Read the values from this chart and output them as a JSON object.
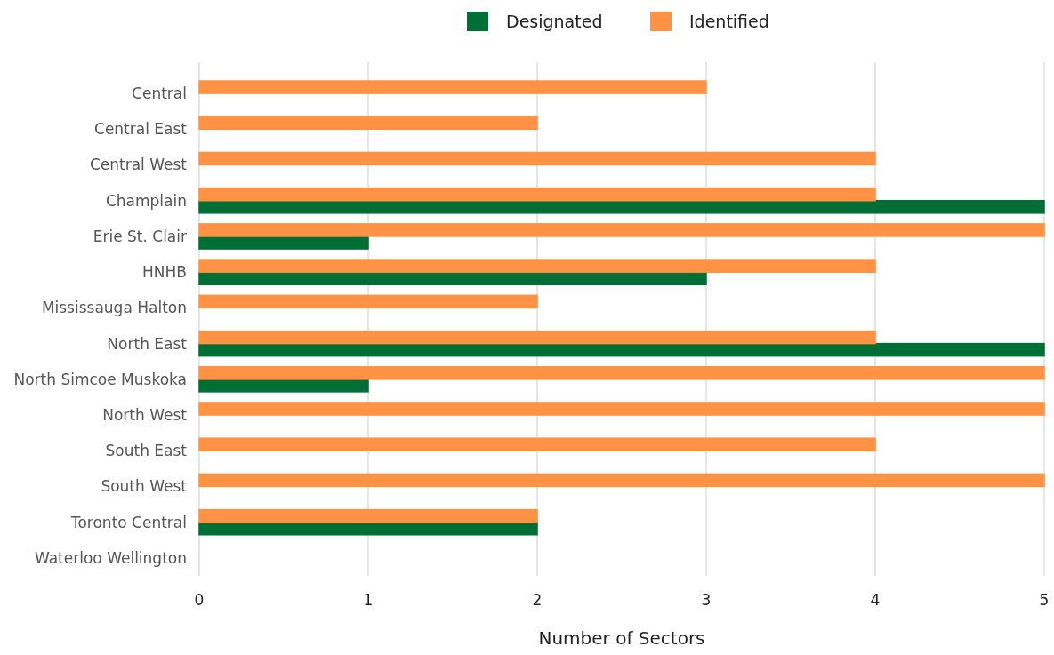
{
  "chart_data": {
    "type": "bar",
    "orientation": "horizontal",
    "xlabel": "Number of Sectors",
    "categories": [
      "Central",
      "Central East",
      "Central West",
      "Champlain",
      "Erie St. Clair",
      "HNHB",
      "Mississauga Halton",
      "North East",
      "North Simcoe Muskoka",
      "North West",
      "South East",
      "South West",
      "Toronto Central",
      "Waterloo Wellington"
    ],
    "series": [
      {
        "name": "Designated",
        "color": "#006f35",
        "values": [
          0,
          0,
          0,
          5,
          1,
          3,
          0,
          5,
          1,
          0,
          0,
          0,
          2,
          0
        ]
      },
      {
        "name": "Identified",
        "color": "#ff9244",
        "values": [
          3,
          2,
          4,
          4,
          5,
          4,
          2,
          4,
          5,
          5,
          4,
          5,
          2,
          0
        ]
      }
    ],
    "xlim": [
      0,
      5
    ],
    "xticks": [
      0,
      1,
      2,
      3,
      4,
      5
    ],
    "grid": "x",
    "legend": "top"
  }
}
